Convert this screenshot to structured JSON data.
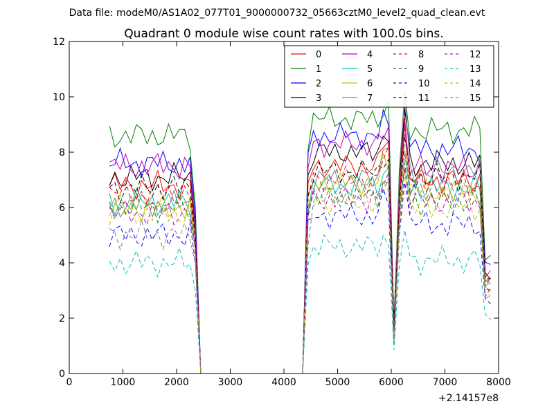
{
  "chart_data": {
    "type": "line",
    "suptitle": "Data file: modeM0/AS1A02_077T01_9000000732_05663cztM0_level2_quad_clean.evt",
    "title": "Quadrant 0 module wise count rates with 100.0s bins.",
    "xlabel": "",
    "ylabel": "",
    "x_offset_label": "+2.14157e8",
    "xlim": [
      0,
      8000
    ],
    "ylim": [
      0,
      12
    ],
    "x_ticks": [
      0,
      1000,
      2000,
      3000,
      4000,
      5000,
      6000,
      7000,
      8000
    ],
    "x_tick_labels": [
      "0",
      "1000",
      "2000",
      "3000",
      "4000",
      "5000",
      "6000",
      "7000",
      "8000"
    ],
    "y_ticks": [
      0,
      2,
      4,
      6,
      8,
      10,
      12
    ],
    "y_tick_labels": [
      "0",
      "2",
      "4",
      "6",
      "8",
      "10",
      "12"
    ],
    "grid": false,
    "legend_position": "top-right",
    "segments": [
      {
        "x_start": 700,
        "x_end": 2300,
        "step": 100
      },
      {
        "x_start": 2400,
        "x_end": 4400,
        "step": 100
      },
      {
        "x_start": 4500,
        "x_end": 5900,
        "step": 100
      },
      {
        "x_start": 6000,
        "x_end": 6100,
        "step": 100
      },
      {
        "x_start": 6200,
        "x_end": 7800,
        "step": 100
      }
    ],
    "x": [
      750,
      850,
      950,
      1050,
      1150,
      1250,
      1350,
      1450,
      1550,
      1650,
      1750,
      1850,
      1950,
      2050,
      2150,
      2250,
      2350,
      2450,
      2550,
      2650,
      2750,
      2850,
      2950,
      3050,
      3150,
      3250,
      3350,
      3450,
      3550,
      3650,
      3750,
      3850,
      3950,
      4050,
      4150,
      4250,
      4350,
      4450,
      4550,
      4650,
      4750,
      4850,
      4950,
      5050,
      5150,
      5250,
      5350,
      5450,
      5550,
      5650,
      5750,
      5850,
      5950,
      6050,
      6150,
      6250,
      6350,
      6450,
      6550,
      6650,
      6750,
      6850,
      6950,
      7050,
      7150,
      7250,
      7350,
      7450,
      7550,
      7650,
      7750,
      7850
    ],
    "series": [
      {
        "name": "0",
        "color": "#ff0000",
        "dash": "solid",
        "level": 6.8,
        "mid": 7.5,
        "post": 7.0,
        "dip": 1.4,
        "peak": 9.2,
        "pre_edge": 5.0,
        "end": 3.4
      },
      {
        "name": "1",
        "color": "#008000",
        "dash": "solid",
        "level": 8.6,
        "mid": 9.2,
        "post": 8.8,
        "dip": 1.5,
        "peak": 10.1,
        "pre_edge": 6.0,
        "end": 4.2
      },
      {
        "name": "2",
        "color": "#0000ff",
        "dash": "solid",
        "level": 7.6,
        "mid": 8.6,
        "post": 8.1,
        "dip": 1.5,
        "peak": 9.6,
        "pre_edge": 5.6,
        "end": 3.9
      },
      {
        "name": "3",
        "color": "#000000",
        "dash": "solid",
        "level": 7.1,
        "mid": 8.0,
        "post": 7.6,
        "dip": 1.7,
        "peak": 9.6,
        "pre_edge": 5.4,
        "end": 3.6
      },
      {
        "name": "4",
        "color": "#bf00bf",
        "dash": "solid",
        "level": 7.5,
        "mid": 8.3,
        "post": 7.4,
        "dip": 1.4,
        "peak": 9.0,
        "pre_edge": 5.4,
        "end": 3.6
      },
      {
        "name": "5",
        "color": "#00bfbf",
        "dash": "solid",
        "level": 6.2,
        "mid": 6.8,
        "post": 6.7,
        "dip": 1.2,
        "peak": 8.0,
        "pre_edge": 4.6,
        "end": 3.2
      },
      {
        "name": "6",
        "color": "#bfbf00",
        "dash": "solid",
        "level": 6.0,
        "mid": 6.9,
        "post": 6.6,
        "dip": 1.2,
        "peak": 8.2,
        "pre_edge": 4.5,
        "end": 3.0
      },
      {
        "name": "7",
        "color": "#808080",
        "dash": "solid",
        "level": 6.1,
        "mid": 7.0,
        "post": 7.3,
        "dip": 1.3,
        "peak": 10.1,
        "pre_edge": 4.7,
        "end": 3.4
      },
      {
        "name": "8",
        "color": "#ff0000",
        "dash": "dashed",
        "level": 6.5,
        "mid": 7.0,
        "post": 6.8,
        "dip": 1.3,
        "peak": 8.8,
        "pre_edge": 4.9,
        "end": 3.3
      },
      {
        "name": "9",
        "color": "#008000",
        "dash": "dashed",
        "level": 6.0,
        "mid": 6.4,
        "post": 6.2,
        "dip": 1.2,
        "peak": 7.6,
        "pre_edge": 4.5,
        "end": 3.0
      },
      {
        "name": "10",
        "color": "#0000ff",
        "dash": "dashed",
        "level": 5.0,
        "mid": 5.7,
        "post": 5.4,
        "dip": 1.0,
        "peak": 7.0,
        "pre_edge": 4.0,
        "end": 2.6
      },
      {
        "name": "11",
        "color": "#000000",
        "dash": "dashed",
        "level": 6.7,
        "mid": 7.3,
        "post": 7.1,
        "dip": 1.4,
        "peak": 8.5,
        "pre_edge": 5.0,
        "end": 3.5
      },
      {
        "name": "12",
        "color": "#bf00bf",
        "dash": "dashed",
        "level": 5.8,
        "mid": 6.3,
        "post": 6.2,
        "dip": 1.1,
        "peak": 7.4,
        "pre_edge": 4.4,
        "end": 2.9
      },
      {
        "name": "13",
        "color": "#00bfbf",
        "dash": "dashed",
        "level": 4.0,
        "mid": 4.6,
        "post": 4.1,
        "dip": 0.8,
        "peak": 5.2,
        "pre_edge": 3.0,
        "end": 2.0
      },
      {
        "name": "14",
        "color": "#bfbf00",
        "dash": "dashed",
        "level": 5.8,
        "mid": 6.2,
        "post": 6.0,
        "dip": 1.1,
        "peak": 7.3,
        "pre_edge": 4.3,
        "end": 2.9
      },
      {
        "name": "15",
        "color": "#808080",
        "dash": "dashed",
        "level": 5.0,
        "mid": 6.4,
        "post": 6.7,
        "dip": 1.1,
        "peak": 7.8,
        "pre_edge": 4.1,
        "end": 2.8
      }
    ]
  }
}
